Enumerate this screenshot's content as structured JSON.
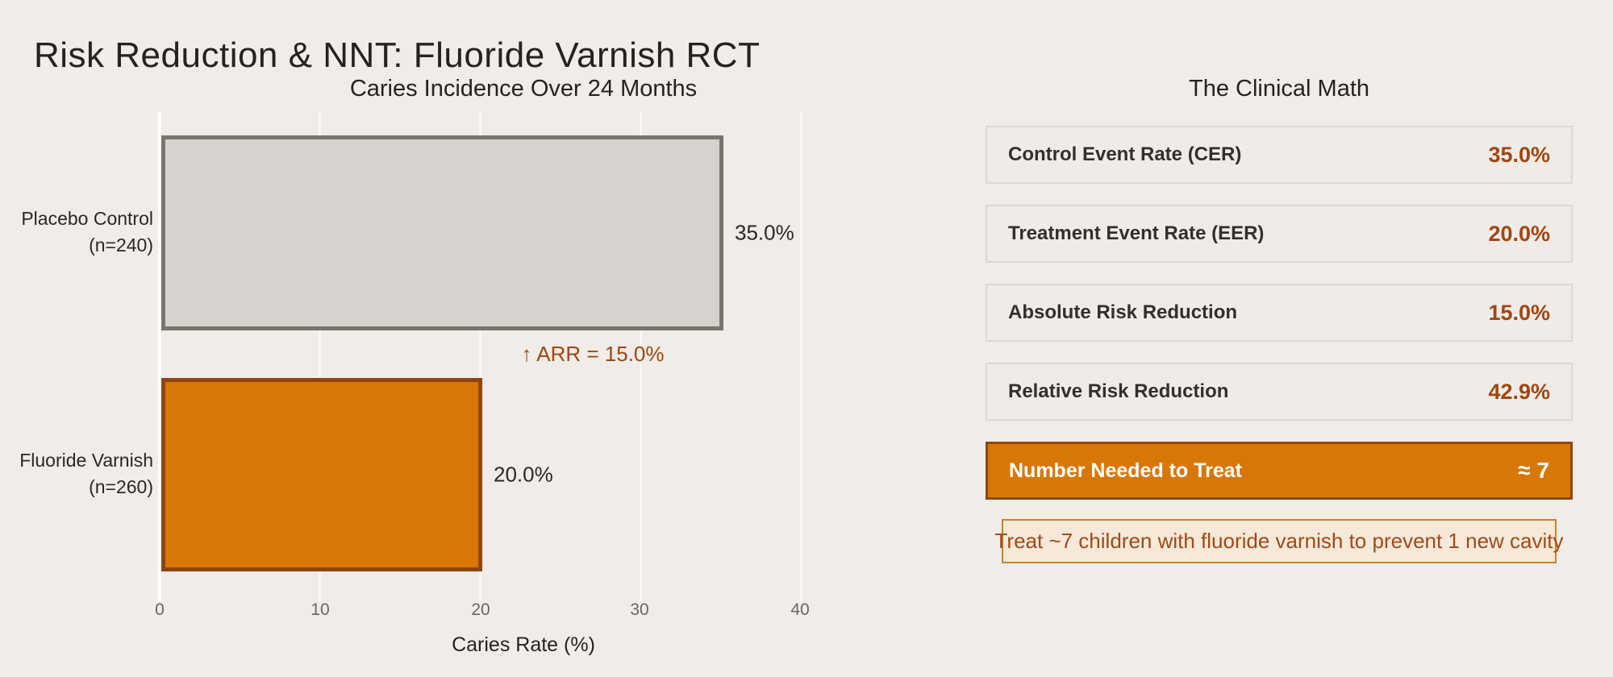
{
  "figure": {
    "title": "Risk Reduction & NNT: Fluoride Varnish RCT",
    "background": "#f1ece8"
  },
  "chart_data": {
    "type": "bar",
    "orientation": "horizontal",
    "title": "Caries Incidence Over 24 Months",
    "xlabel": "Caries Rate (%)",
    "xlim": [
      0,
      40
    ],
    "x_ticks": [
      "0",
      "10",
      "20",
      "30",
      "40"
    ],
    "grid": "vertical white gridlines at each x tick",
    "legend": "none",
    "categories": [
      "Placebo Control (n=240)",
      "Fluoride Varnish (n=260)"
    ],
    "values": [
      35.0,
      20.0
    ],
    "value_labels": [
      "35.0%",
      "20.0%"
    ],
    "bar_colors": [
      "#d6d2ce",
      "#d97706"
    ],
    "bar_edge_colors": [
      "#7a746e",
      "#8f4510"
    ],
    "bars": [
      {
        "label_line1": "Placebo Control",
        "label_line2": "(n=240)",
        "value": 35.0,
        "value_label": "35.0%"
      },
      {
        "label_line1": "Fluoride Varnish",
        "label_line2": "(n=260)",
        "value": 20.0,
        "value_label": "20.0%"
      }
    ],
    "annotation": {
      "text": "↑ ARR = 15.0%",
      "color": "#a04612",
      "position": "between the two bars, around x = 27%"
    }
  },
  "panel": {
    "title": "The Clinical Math",
    "rows": [
      {
        "label": "Control Event Rate (CER)",
        "value": "35.0%"
      },
      {
        "label": "Treatment Event Rate (EER)",
        "value": "20.0%"
      },
      {
        "label": "Absolute Risk Reduction",
        "value": "15.0%"
      },
      {
        "label": "Relative Risk Reduction",
        "value": "42.9%"
      }
    ],
    "highlight_row": {
      "label": "Number Needed to Treat",
      "value": "≈ 7"
    },
    "note": "Treat ~7 children with fluoride varnish to prevent 1 new cavity"
  },
  "colors": {
    "background": "#f1ece8",
    "accent_orange": "#d97706",
    "accent_orange_dark": "#8f4510",
    "rust_text": "#a04612",
    "gray_bar": "#d6d2ce",
    "gray_bar_edge": "#7a746e",
    "row_border": "#ddd8d4",
    "note_background": "#f6e9d9",
    "note_border": "#ca8323",
    "gridline": "#ffffff",
    "dark_text": "#262220",
    "tick_text": "#6b6662"
  }
}
